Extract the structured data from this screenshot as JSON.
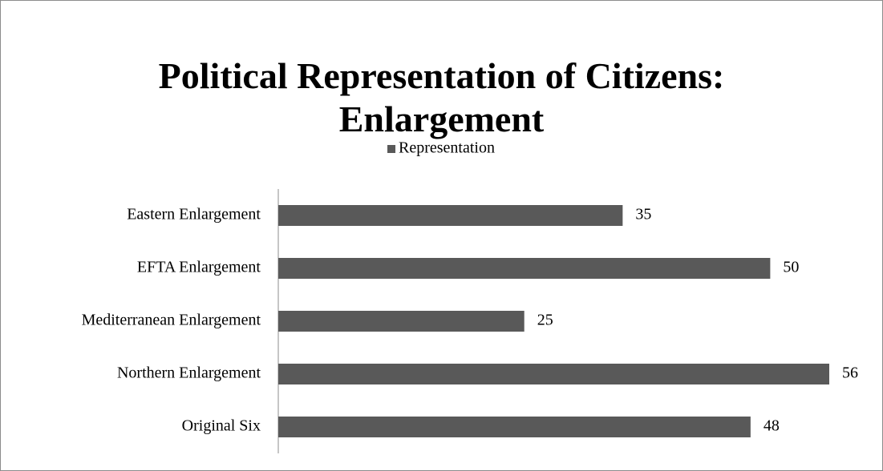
{
  "chart_data": {
    "type": "bar",
    "orientation": "horizontal",
    "title": "Political Representation of Citizens: Enlargement",
    "categories": [
      "Eastern Enlargement",
      "EFTA Enlargement",
      "Mediterranean Enlargement",
      "Northern Enlargement",
      "Original Six"
    ],
    "series": [
      {
        "name": "Representation",
        "color": "#595959",
        "values": [
          35,
          50,
          25,
          56,
          48
        ]
      }
    ],
    "legend": "top"
  }
}
